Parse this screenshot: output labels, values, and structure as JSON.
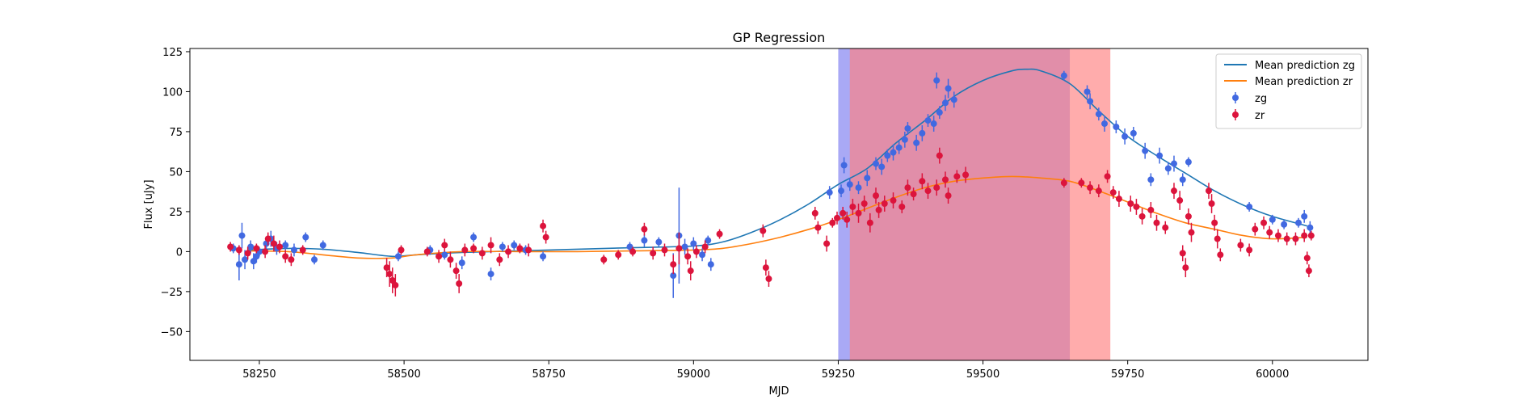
{
  "chart_data": {
    "type": "scatter",
    "title": "GP Regression",
    "xlabel": "MJD",
    "ylabel": "Flux [uJy]",
    "xlim": [
      58130,
      60165
    ],
    "ylim": [
      -68,
      127
    ],
    "xticks": [
      58250,
      58500,
      58750,
      59000,
      59250,
      59500,
      59750,
      60000
    ],
    "yticks": [
      -50,
      -25,
      0,
      25,
      50,
      75,
      100,
      125
    ],
    "legend_position": "top-right",
    "shaded_regions": [
      {
        "x0": 59250,
        "x1": 59650,
        "color": "#7b7bf0",
        "opacity": 0.65
      },
      {
        "x0": 59270,
        "x1": 59720,
        "color": "#ff7f7f",
        "opacity": 0.65
      }
    ],
    "lines": [
      {
        "name": "Mean prediction zg",
        "color": "#1f77b4",
        "x": [
          58230,
          58300,
          58360,
          58420,
          58480,
          58520,
          58600,
          58700,
          58800,
          58900,
          59000,
          59050,
          59100,
          59150,
          59200,
          59250,
          59300,
          59350,
          59400,
          59450,
          59500,
          59550,
          59575,
          59600,
          59650,
          59700,
          59750,
          59800,
          59850,
          59900,
          59950,
          60000,
          60060
        ],
        "y": [
          1,
          2,
          1.5,
          -0.5,
          -3,
          -2,
          -0.5,
          0.5,
          1.5,
          2.5,
          3.5,
          6,
          12,
          20,
          30,
          42,
          52,
          68,
          82,
          97,
          107,
          113,
          114,
          113,
          105,
          88,
          72,
          60,
          49,
          38,
          29,
          22,
          16
        ]
      },
      {
        "name": "Mean prediction zr",
        "color": "#ff7f0e",
        "x": [
          58230,
          58300,
          58360,
          58420,
          58480,
          58520,
          58600,
          58700,
          58800,
          58900,
          59000,
          59050,
          59100,
          59150,
          59200,
          59250,
          59300,
          59350,
          59400,
          59450,
          59500,
          59550,
          59600,
          59650,
          59700,
          59750,
          59800,
          59850,
          59900,
          59950,
          60000,
          60060
        ],
        "y": [
          0.5,
          0,
          -2,
          -4,
          -4,
          -2,
          0,
          0,
          0,
          0.5,
          1,
          2,
          5,
          9,
          14,
          20,
          27,
          34,
          40,
          44,
          46,
          47,
          46,
          44,
          38,
          31,
          24,
          18,
          14,
          10,
          8,
          9
        ]
      }
    ],
    "series": [
      {
        "name": "zg",
        "color": "#4169e1",
        "points": [
          [
            58205,
            2,
            3
          ],
          [
            58215,
            -8,
            10
          ],
          [
            58220,
            10,
            8
          ],
          [
            58225,
            -5,
            6
          ],
          [
            58235,
            3,
            4
          ],
          [
            58240,
            -6,
            5
          ],
          [
            58245,
            -3,
            4
          ],
          [
            58250,
            0,
            3
          ],
          [
            58262,
            5,
            4
          ],
          [
            58270,
            8,
            5
          ],
          [
            58280,
            2,
            4
          ],
          [
            58295,
            4,
            3
          ],
          [
            58310,
            1,
            4
          ],
          [
            58330,
            9,
            3
          ],
          [
            58345,
            -5,
            3
          ],
          [
            58360,
            4,
            3
          ],
          [
            58490,
            -3,
            3
          ],
          [
            58545,
            1,
            3
          ],
          [
            58570,
            -2,
            3
          ],
          [
            58600,
            -7,
            4
          ],
          [
            58620,
            9,
            3
          ],
          [
            58650,
            -14,
            4
          ],
          [
            58670,
            3,
            3
          ],
          [
            58690,
            4,
            3
          ],
          [
            58710,
            1,
            3
          ],
          [
            58740,
            -3,
            3
          ],
          [
            58890,
            3,
            3
          ],
          [
            58915,
            7,
            4
          ],
          [
            58940,
            6,
            3
          ],
          [
            58965,
            -15,
            14
          ],
          [
            58975,
            10,
            30
          ],
          [
            58985,
            3,
            5
          ],
          [
            59000,
            5,
            4
          ],
          [
            59015,
            -2,
            4
          ],
          [
            59025,
            7,
            3
          ],
          [
            59030,
            -8,
            4
          ],
          [
            59235,
            37,
            4
          ],
          [
            59255,
            38,
            4
          ],
          [
            59260,
            54,
            5
          ],
          [
            59270,
            42,
            4
          ],
          [
            59285,
            40,
            4
          ],
          [
            59300,
            46,
            5
          ],
          [
            59315,
            55,
            4
          ],
          [
            59325,
            53,
            5
          ],
          [
            59335,
            60,
            4
          ],
          [
            59345,
            62,
            5
          ],
          [
            59355,
            65,
            4
          ],
          [
            59365,
            70,
            5
          ],
          [
            59370,
            77,
            4
          ],
          [
            59385,
            68,
            5
          ],
          [
            59395,
            74,
            5
          ],
          [
            59405,
            82,
            4
          ],
          [
            59415,
            80,
            5
          ],
          [
            59420,
            107,
            5
          ],
          [
            59425,
            87,
            4
          ],
          [
            59435,
            93,
            5
          ],
          [
            59440,
            102,
            6
          ],
          [
            59450,
            95,
            5
          ],
          [
            59640,
            110,
            3
          ],
          [
            59680,
            100,
            4
          ],
          [
            59685,
            94,
            5
          ],
          [
            59700,
            86,
            4
          ],
          [
            59710,
            80,
            5
          ],
          [
            59730,
            78,
            4
          ],
          [
            59745,
            72,
            5
          ],
          [
            59760,
            74,
            4
          ],
          [
            59780,
            63,
            5
          ],
          [
            59790,
            45,
            4
          ],
          [
            59805,
            60,
            5
          ],
          [
            59820,
            52,
            4
          ],
          [
            59830,
            55,
            5
          ],
          [
            59845,
            45,
            4
          ],
          [
            59855,
            56,
            3
          ],
          [
            59960,
            28,
            3
          ],
          [
            60000,
            20,
            3
          ],
          [
            60020,
            17,
            3
          ],
          [
            60045,
            18,
            3
          ],
          [
            60055,
            22,
            4
          ],
          [
            60065,
            15,
            4
          ]
        ]
      },
      {
        "name": "zr",
        "color": "#dc143c",
        "points": [
          [
            58200,
            3,
            3
          ],
          [
            58215,
            1,
            3
          ],
          [
            58230,
            -1,
            4
          ],
          [
            58245,
            2,
            3
          ],
          [
            58260,
            0,
            4
          ],
          [
            58265,
            8,
            4
          ],
          [
            58275,
            5,
            5
          ],
          [
            58285,
            3,
            4
          ],
          [
            58295,
            -3,
            4
          ],
          [
            58305,
            -5,
            4
          ],
          [
            58325,
            1,
            3
          ],
          [
            58470,
            -10,
            6
          ],
          [
            58475,
            -14,
            8
          ],
          [
            58480,
            -18,
            8
          ],
          [
            58485,
            -21,
            7
          ],
          [
            58495,
            1,
            3
          ],
          [
            58540,
            0,
            3
          ],
          [
            58560,
            -3,
            4
          ],
          [
            58570,
            4,
            4
          ],
          [
            58580,
            -5,
            5
          ],
          [
            58590,
            -12,
            5
          ],
          [
            58595,
            -20,
            6
          ],
          [
            58605,
            1,
            4
          ],
          [
            58620,
            2,
            3
          ],
          [
            58635,
            -1,
            4
          ],
          [
            58650,
            4,
            5
          ],
          [
            58665,
            -5,
            4
          ],
          [
            58680,
            0,
            4
          ],
          [
            58700,
            2,
            3
          ],
          [
            58715,
            1,
            4
          ],
          [
            58740,
            16,
            4
          ],
          [
            58745,
            9,
            4
          ],
          [
            58845,
            -5,
            3
          ],
          [
            58870,
            -2,
            3
          ],
          [
            58895,
            0,
            3
          ],
          [
            58915,
            14,
            4
          ],
          [
            58930,
            -1,
            4
          ],
          [
            58950,
            1,
            4
          ],
          [
            58965,
            -8,
            6
          ],
          [
            58975,
            2,
            10
          ],
          [
            58990,
            -3,
            5
          ],
          [
            58995,
            -12,
            6
          ],
          [
            59005,
            0,
            4
          ],
          [
            59020,
            3,
            4
          ],
          [
            59045,
            11,
            3
          ],
          [
            59120,
            13,
            4
          ],
          [
            59125,
            -10,
            5
          ],
          [
            59130,
            -17,
            5
          ],
          [
            59210,
            24,
            4
          ],
          [
            59215,
            15,
            4
          ],
          [
            59230,
            5,
            5
          ],
          [
            59240,
            18,
            3
          ],
          [
            59248,
            21,
            4
          ],
          [
            59258,
            24,
            4
          ],
          [
            59265,
            20,
            5
          ],
          [
            59275,
            28,
            5
          ],
          [
            59285,
            24,
            6
          ],
          [
            59295,
            30,
            5
          ],
          [
            59305,
            18,
            6
          ],
          [
            59315,
            35,
            5
          ],
          [
            59320,
            26,
            5
          ],
          [
            59330,
            30,
            5
          ],
          [
            59345,
            32,
            5
          ],
          [
            59360,
            28,
            4
          ],
          [
            59370,
            40,
            5
          ],
          [
            59380,
            36,
            4
          ],
          [
            59395,
            44,
            5
          ],
          [
            59405,
            38,
            5
          ],
          [
            59420,
            40,
            5
          ],
          [
            59425,
            60,
            5
          ],
          [
            59435,
            45,
            5
          ],
          [
            59440,
            35,
            5
          ],
          [
            59455,
            47,
            4
          ],
          [
            59470,
            48,
            5
          ],
          [
            59640,
            43,
            3
          ],
          [
            59670,
            43,
            3
          ],
          [
            59685,
            40,
            4
          ],
          [
            59700,
            38,
            4
          ],
          [
            59715,
            47,
            4
          ],
          [
            59725,
            37,
            4
          ],
          [
            59735,
            33,
            5
          ],
          [
            59755,
            30,
            5
          ],
          [
            59765,
            28,
            5
          ],
          [
            59775,
            22,
            5
          ],
          [
            59790,
            26,
            5
          ],
          [
            59800,
            18,
            5
          ],
          [
            59815,
            15,
            4
          ],
          [
            59830,
            38,
            5
          ],
          [
            59840,
            32,
            6
          ],
          [
            59845,
            -1,
            5
          ],
          [
            59850,
            -10,
            6
          ],
          [
            59855,
            22,
            5
          ],
          [
            59860,
            12,
            6
          ],
          [
            59890,
            38,
            5
          ],
          [
            59895,
            30,
            6
          ],
          [
            59900,
            18,
            5
          ],
          [
            59905,
            8,
            6
          ],
          [
            59910,
            -2,
            4
          ],
          [
            59945,
            4,
            4
          ],
          [
            59960,
            1,
            4
          ],
          [
            59970,
            14,
            4
          ],
          [
            59985,
            18,
            4
          ],
          [
            59995,
            12,
            4
          ],
          [
            60010,
            10,
            4
          ],
          [
            60025,
            8,
            4
          ],
          [
            60040,
            8,
            4
          ],
          [
            60055,
            10,
            4
          ],
          [
            60060,
            -4,
            4
          ],
          [
            60063,
            -12,
            4
          ],
          [
            60067,
            10,
            3
          ]
        ]
      }
    ]
  }
}
